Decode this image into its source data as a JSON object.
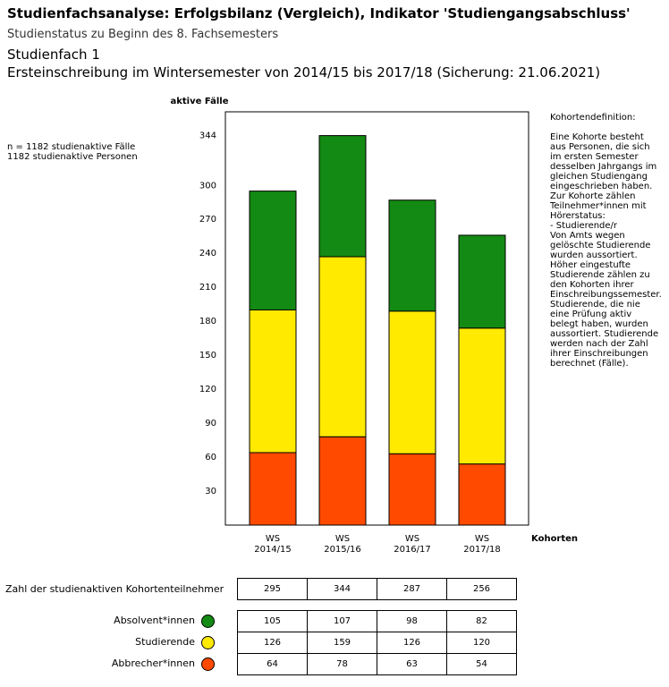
{
  "chart_data": {
    "type": "stacked-bar",
    "title": "Studienfachsanalyse: Erfolgsbilanz (Vergleich), Indikator 'Studiengangsabschluss'",
    "subtitle": "Studienstatus zu Beginn des 8. Fachsemesters",
    "heading": "Studienfach 1",
    "subheading": "Ersteinschreibung im Wintersemester von 2014/15 bis 2017/18 (Sicherung: 21.06.2021)",
    "y_label": "aktive Fälle",
    "x_label": "Kohorten",
    "counts": [
      "n = 1182 studienaktive Fälle",
      "1182 studienaktive Personen"
    ],
    "definition": [
      "Kohortendefinition:",
      "Eine Kohorte besteht aus Personen, die sich im ersten Semester desselben Jahrgangs im gleichen Studiengang eingeschrieben haben. Zur Kohorte zählen Teilnehmer*innen mit Hörerstatus:",
      "- Studierende/r",
      "Von Amts wegen gelöschte Studierende wurden aussortiert. Höher eingestufte Studierende zählen zu den Kohorten ihrer Einschreibungssemester. Studierende, die nie eine Prüfung aktiv belegt haben, wurden aussortiert. Studierende werden nach der Zahl ihrer Einschreibungen berechnet (Fälle)."
    ],
    "categories": [
      "WS 2014/15",
      "WS 2015/16",
      "WS 2016/17",
      "WS 2017/18"
    ],
    "series": [
      {
        "name": "Abbrecher*innen",
        "color": "#ff4a00",
        "values": [
          64,
          78,
          63,
          54
        ]
      },
      {
        "name": "Studierende",
        "color": "#ffea00",
        "values": [
          126,
          159,
          126,
          120
        ]
      },
      {
        "name": "Absolvent*innen",
        "color": "#138a13",
        "values": [
          105,
          107,
          98,
          82
        ]
      }
    ],
    "totals_label": "Zahl der studienaktiven Kohortenteilnehmer",
    "totals": [
      295,
      344,
      287,
      256
    ],
    "ylim": [
      0,
      365
    ],
    "yticks": [
      30,
      60,
      90,
      120,
      150,
      180,
      210,
      240,
      270,
      300,
      344
    ]
  }
}
